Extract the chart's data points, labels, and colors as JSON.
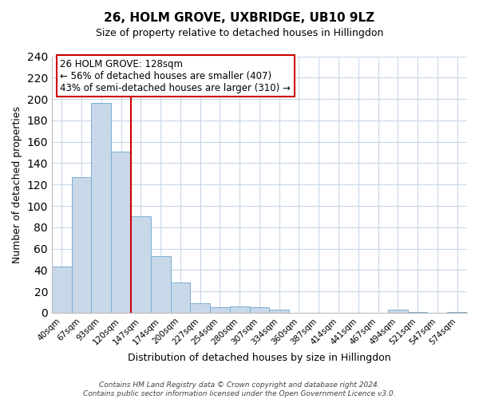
{
  "title": "26, HOLM GROVE, UXBRIDGE, UB10 9LZ",
  "subtitle": "Size of property relative to detached houses in Hillingdon",
  "xlabel": "Distribution of detached houses by size in Hillingdon",
  "ylabel": "Number of detached properties",
  "bin_labels": [
    "40sqm",
    "67sqm",
    "93sqm",
    "120sqm",
    "147sqm",
    "174sqm",
    "200sqm",
    "227sqm",
    "254sqm",
    "280sqm",
    "307sqm",
    "334sqm",
    "360sqm",
    "387sqm",
    "414sqm",
    "441sqm",
    "467sqm",
    "494sqm",
    "521sqm",
    "547sqm",
    "574sqm"
  ],
  "bar_heights": [
    43,
    127,
    196,
    151,
    90,
    53,
    28,
    9,
    5,
    6,
    5,
    3,
    0,
    0,
    0,
    0,
    0,
    3,
    1,
    0,
    1
  ],
  "bar_color": "#c8d8e8",
  "bar_edge_color": "#7bafd4",
  "vline_x_index": 3.5,
  "vline_color": "#cc0000",
  "annotation_title": "26 HOLM GROVE: 128sqm",
  "annotation_line1": "← 56% of detached houses are smaller (407)",
  "annotation_line2": "43% of semi-detached houses are larger (310) →",
  "annotation_box_edge": "#cc0000",
  "ylim": [
    0,
    240
  ],
  "yticks": [
    0,
    20,
    40,
    60,
    80,
    100,
    120,
    140,
    160,
    180,
    200,
    220,
    240
  ],
  "footer_line1": "Contains HM Land Registry data © Crown copyright and database right 2024.",
  "footer_line2": "Contains public sector information licensed under the Open Government Licence v3.0.",
  "background_color": "#ffffff",
  "grid_color": "#c8d8e8"
}
